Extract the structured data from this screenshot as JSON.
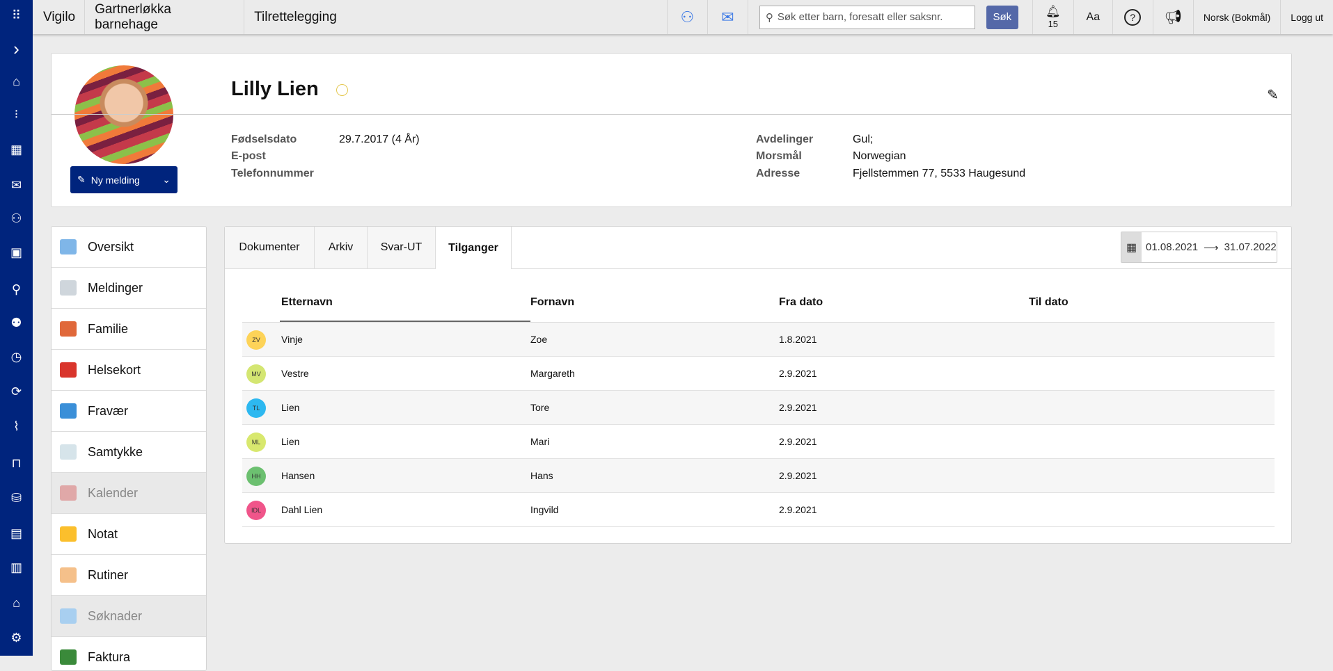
{
  "topbar": {
    "app": "Vigilo",
    "school": "Gartnerløkka barnehage",
    "module": "Tilrettelegging",
    "search_placeholder": "Søk etter barn, foresatt eller saksnr.",
    "search_button": "Søk",
    "notifications": "15",
    "font_size": "Aa",
    "language": "Norsk (Bokmål)",
    "logout": "Logg ut"
  },
  "rail": {
    "icons": [
      "grid-icon",
      "chevron-right-icon",
      "home-icon",
      "tasks-icon",
      "calendar-grid-icon",
      "mail-icon",
      "children-icon",
      "badge-icon",
      "person-calendar-icon",
      "group-icon",
      "clock-calendar-icon",
      "person-rotate-icon",
      "sleep-icon",
      "desk-icon",
      "coins-icon",
      "document-icon",
      "bar-chart-icon",
      "school-icon",
      "gear-icon"
    ]
  },
  "profile": {
    "name": "Lilly Lien",
    "new_message": "Ny melding",
    "fields_left": [
      {
        "label": "Fødselsdato",
        "value": "29.7.2017 (4 År)"
      },
      {
        "label": "E-post",
        "value": ""
      },
      {
        "label": "Telefonnummer",
        "value": ""
      }
    ],
    "fields_right": [
      {
        "label": "Avdelinger",
        "value": "Gul;"
      },
      {
        "label": "Morsmål",
        "value": "Norwegian"
      },
      {
        "label": "Adresse",
        "value": "Fjellstemmen 77, 5533 Haugesund"
      }
    ]
  },
  "menu": {
    "items": [
      {
        "label": "Oversikt",
        "color": "#7fb6e8"
      },
      {
        "label": "Meldinger",
        "color": "#cfd6dc"
      },
      {
        "label": "Familie",
        "color": "#e0683a"
      },
      {
        "label": "Helsekort",
        "color": "#d9352c"
      },
      {
        "label": "Fravær",
        "color": "#3a8fd8"
      },
      {
        "label": "Samtykke",
        "color": "#d6e4ea"
      },
      {
        "label": "Kalender",
        "color": "#e0a8a8",
        "disabled": true
      },
      {
        "label": "Notat",
        "color": "#fbbf2c"
      },
      {
        "label": "Rutiner",
        "color": "#f5c08a"
      },
      {
        "label": "Søknader",
        "color": "#a8cff0",
        "disabled": true
      },
      {
        "label": "Faktura",
        "color": "#3a8a3a"
      }
    ]
  },
  "tabs": [
    {
      "label": "Dokumenter"
    },
    {
      "label": "Arkiv"
    },
    {
      "label": "Svar-UT"
    },
    {
      "label": "Tilganger",
      "active": true
    }
  ],
  "daterange": {
    "from": "01.08.2021",
    "to": "31.07.2022"
  },
  "table": {
    "headers": [
      "Etternavn",
      "Fornavn",
      "Fra dato",
      "Til dato"
    ],
    "sorted_by": "Etternavn",
    "rows": [
      {
        "initials": "ZV",
        "color": "#fdd358",
        "last": "Vinje",
        "first": "Zoe",
        "from": "1.8.2021",
        "to": ""
      },
      {
        "initials": "MV",
        "color": "#d4e672",
        "last": "Vestre",
        "first": "Margareth",
        "from": "2.9.2021",
        "to": ""
      },
      {
        "initials": "TL",
        "color": "#2db8f0",
        "last": "Lien",
        "first": "Tore",
        "from": "2.9.2021",
        "to": ""
      },
      {
        "initials": "ML",
        "color": "#d8e86e",
        "last": "Lien",
        "first": "Mari",
        "from": "2.9.2021",
        "to": ""
      },
      {
        "initials": "HH",
        "color": "#6cc070",
        "last": "Hansen",
        "first": "Hans",
        "from": "2.9.2021",
        "to": ""
      },
      {
        "initials": "IDL",
        "color": "#f0558a",
        "last": "Dahl Lien",
        "first": "Ingvild",
        "from": "2.9.2021",
        "to": ""
      }
    ]
  }
}
